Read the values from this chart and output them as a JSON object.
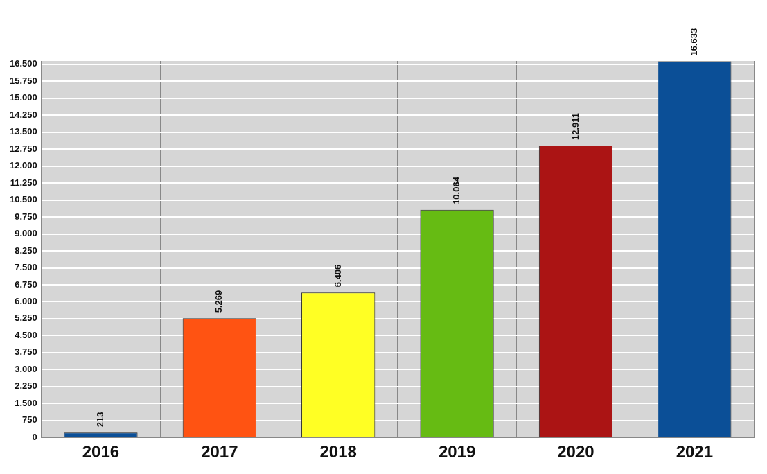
{
  "chart_data": {
    "type": "bar",
    "categories": [
      "2016",
      "2017",
      "2018",
      "2019",
      "2020",
      "2021"
    ],
    "values": [
      213,
      5269,
      6406,
      10064,
      12911,
      16633
    ],
    "colors": [
      "#0b4f97",
      "#ff5312",
      "#ffff24",
      "#66bb13",
      "#ab1414",
      "#0b4f97"
    ],
    "value_labels": [
      "213",
      "5.269",
      "6.406",
      "10.064",
      "12.911",
      "16.633"
    ],
    "ylim": [
      0,
      16650
    ],
    "yticks": [
      0,
      {
        "value": 750,
        "label": "750"
      },
      {
        "value": 1500,
        "label": "1.500"
      },
      {
        "value": 2250,
        "label": "2.250"
      },
      {
        "value": 3000,
        "label": "3.000"
      },
      {
        "value": 3750,
        "label": "3.750"
      },
      {
        "value": 4500,
        "label": "4.500"
      },
      {
        "value": 5250,
        "label": "5.250"
      },
      {
        "value": 6000,
        "label": "6.000"
      },
      {
        "value": 6750,
        "label": "6.750"
      },
      {
        "value": 7500,
        "label": "7.500"
      },
      {
        "value": 8250,
        "label": "8.250"
      },
      {
        "value": 9000,
        "label": "9.000"
      },
      {
        "value": 9750,
        "label": "9.750"
      },
      {
        "value": 10500,
        "label": "10.500"
      },
      {
        "value": 11250,
        "label": "11.250"
      },
      {
        "value": 12000,
        "label": "12.000"
      },
      {
        "value": 12750,
        "label": "12.750"
      },
      {
        "value": 13500,
        "label": "13.500"
      },
      {
        "value": 14250,
        "label": "14.250"
      },
      {
        "value": 15000,
        "label": "15.000"
      },
      {
        "value": 15750,
        "label": "15.750"
      },
      {
        "value": 16500,
        "label": "16.500"
      }
    ],
    "grid": true,
    "legend": false
  }
}
